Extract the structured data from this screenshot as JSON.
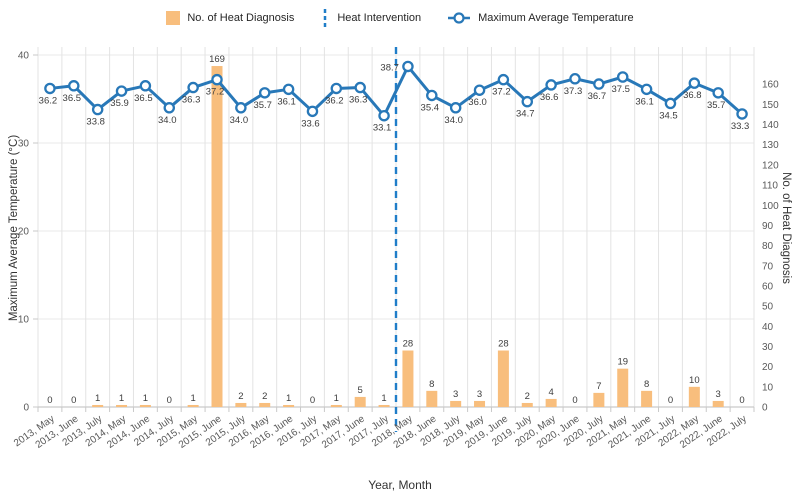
{
  "legend": {
    "items": [
      {
        "label": "No. of Heat Diagnosis",
        "glyph": "bar-swatch"
      },
      {
        "label": "Heat Intervention",
        "glyph": "dashed-line"
      },
      {
        "label": "Maximum Average Temperature",
        "glyph": "line-marker"
      }
    ]
  },
  "colors": {
    "bar": "#F8BE7D",
    "bar_label": "#3d3d3d",
    "line": "#2878B8",
    "marker_fill": "#ffffff",
    "vline": "#1F7DC8",
    "grid_vertical": "#e3e3e3",
    "grid_horizontal": "#e9e9e9",
    "axis_line": "#c9c9c9",
    "tick_label": "#595959",
    "data_label": "#3d3d3d"
  },
  "chart_data": {
    "type": "bar+line combo",
    "categories": [
      "2013, May",
      "2013, June",
      "2013, July",
      "2014, May",
      "2014, June",
      "2014, July",
      "2015, May",
      "2015, June",
      "2015, July",
      "2016, May",
      "2016, June",
      "2016, July",
      "2017, May",
      "2017, June",
      "2017, July",
      "2018, May",
      "2018, June",
      "2018, July",
      "2019, May",
      "2019, June",
      "2019, July",
      "2020, May",
      "2020, June",
      "2020, July",
      "2021, May",
      "2021, June",
      "2021, July",
      "2022, May",
      "2022, June",
      "2022, July"
    ],
    "series": [
      {
        "name": "No. of Heat Diagnosis",
        "type": "bar",
        "axis": "right",
        "values": [
          0,
          0,
          1,
          1,
          1,
          0,
          1,
          169,
          2,
          2,
          1,
          0,
          1,
          5,
          1,
          28,
          8,
          3,
          3,
          28,
          2,
          4,
          0,
          7,
          19,
          8,
          0,
          10,
          3,
          0
        ]
      },
      {
        "name": "Maximum Average Temperature",
        "type": "line",
        "axis": "left",
        "values": [
          36.2,
          36.5,
          33.8,
          35.9,
          36.5,
          34.0,
          36.3,
          37.2,
          34.0,
          35.7,
          36.1,
          33.6,
          36.2,
          36.3,
          33.1,
          38.7,
          35.4,
          34.0,
          36.0,
          37.2,
          34.7,
          36.6,
          37.3,
          36.7,
          37.5,
          36.1,
          34.5,
          36.8,
          35.7,
          33.3
        ]
      }
    ],
    "annotations": [
      {
        "name": "Heat Intervention",
        "type": "vline",
        "between": [
          "2017, July",
          "2018, May"
        ]
      }
    ],
    "left_axis": {
      "label": "Maximum Average Temperature (°C)",
      "min": 0,
      "max": 40,
      "ticks": [
        0,
        10,
        20,
        30,
        40
      ]
    },
    "right_axis": {
      "label": "No. of Heat Diagnosis",
      "min": 0,
      "max": 160,
      "tick_step": 10
    },
    "x_axis": {
      "label": "Year, Month"
    },
    "grid": true,
    "legend_position": "top"
  }
}
